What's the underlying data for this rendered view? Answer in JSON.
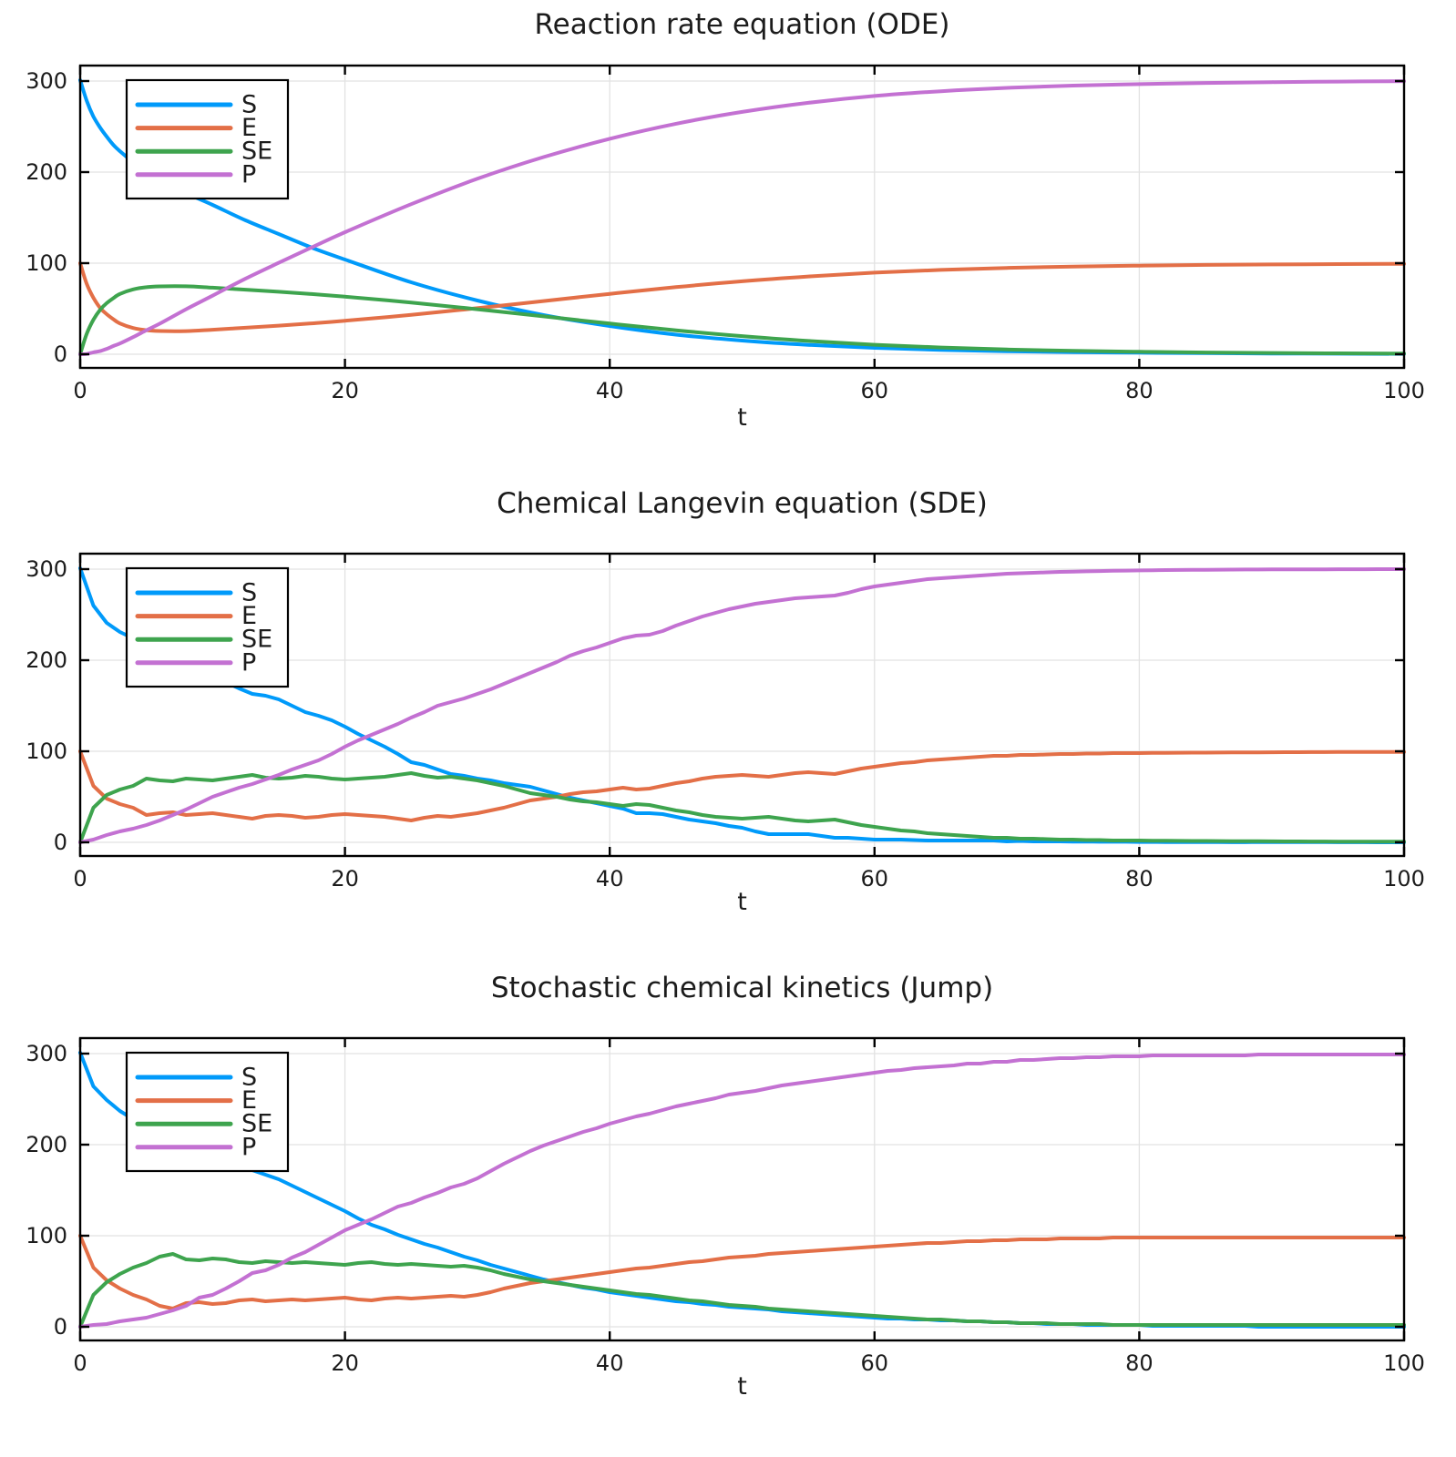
{
  "figure": {
    "background": "#FFFFFF"
  },
  "style": {
    "frame_color": "#000000",
    "grid_color": "#E2E2E2",
    "text_color": "#1C1C1C",
    "series_colors": {
      "S": "#009AFA",
      "E": "#E36F47",
      "SE": "#3EA44E",
      "P": "#C371D2"
    }
  },
  "chart_data": [
    {
      "type": "line",
      "title": "Reaction rate equation (ODE)",
      "xlabel": "t",
      "xlim": [
        0,
        100
      ],
      "ylim": [
        0,
        300
      ],
      "xticks": [
        0,
        20,
        40,
        60,
        80,
        100
      ],
      "yticks": [
        0,
        100,
        200,
        300
      ],
      "grid": true,
      "legend_position": "top-left",
      "legend_entries": [
        "S",
        "E",
        "SE",
        "P"
      ],
      "smooth": true,
      "x": [
        0,
        0.5,
        1,
        1.5,
        2,
        2.5,
        3,
        4,
        5,
        6,
        8,
        10,
        12.5,
        15,
        17.5,
        20,
        25,
        30,
        35,
        40,
        45,
        50,
        55,
        60,
        65,
        70,
        75,
        80,
        85,
        90,
        95,
        100
      ],
      "series": [
        {
          "name": "S",
          "values": [
            301,
            278,
            261,
            249,
            239,
            230,
            223,
            211,
            201,
            193,
            177,
            164,
            147,
            132,
            117,
            104,
            79,
            59,
            43,
            31,
            21.5,
            15,
            10.3,
            7,
            4.8,
            3.3,
            2.3,
            1.7,
            1.2,
            0.8,
            0.6,
            0.4
          ]
        },
        {
          "name": "E",
          "values": [
            100,
            77,
            62,
            51,
            44,
            38.5,
            33.8,
            28.8,
            26.4,
            25.5,
            25.4,
            26.9,
            29.1,
            31.4,
            33.9,
            36.8,
            43.2,
            50.6,
            58.4,
            66.3,
            73.7,
            80.1,
            85.4,
            89.6,
            92.6,
            94.8,
            96.3,
            97.3,
            98.1,
            98.6,
            99,
            99.3
          ]
        },
        {
          "name": "SE",
          "values": [
            0,
            22.7,
            37.9,
            48.6,
            56.1,
            61.5,
            66.2,
            71.2,
            73.6,
            74.5,
            74.6,
            73.1,
            70.9,
            68.6,
            66.1,
            63.2,
            56.8,
            49.4,
            41.6,
            33.7,
            26.3,
            19.9,
            14.6,
            10.4,
            7.4,
            5.2,
            3.7,
            2.7,
            1.9,
            1.4,
            1,
            0.7
          ]
        },
        {
          "name": "P",
          "values": [
            0,
            0.3,
            2.1,
            3.4,
            5.9,
            9,
            11.8,
            18.8,
            26.4,
            33.5,
            49.4,
            64.3,
            83.1,
            100.4,
            117.4,
            134,
            164.8,
            192.7,
            216.5,
            236.6,
            253.1,
            266.1,
            276.1,
            283.6,
            288.8,
            292.5,
            295,
            296.6,
            297.9,
            298.8,
            299.4,
            299.9
          ]
        }
      ]
    },
    {
      "type": "line",
      "title": "Chemical Langevin equation (SDE)",
      "xlabel": "t",
      "xlim": [
        0,
        100
      ],
      "ylim": [
        0,
        300
      ],
      "xticks": [
        0,
        20,
        40,
        60,
        80,
        100
      ],
      "yticks": [
        0,
        100,
        200,
        300
      ],
      "grid": true,
      "legend_position": "top-left",
      "legend_entries": [
        "S",
        "E",
        "SE",
        "P"
      ],
      "smooth": false,
      "x_start": 0,
      "x_step": 1,
      "series": [
        {
          "name": "S",
          "values": [
            301,
            260,
            241,
            231,
            224,
            212,
            209,
            204,
            195,
            189,
            183,
            176,
            169,
            163,
            161,
            157,
            150,
            143,
            139,
            134,
            127,
            119,
            112,
            105,
            97,
            88,
            85,
            80,
            75,
            73,
            70,
            68,
            65,
            63,
            61,
            57,
            53,
            49,
            46,
            43,
            40,
            37,
            32,
            32,
            31,
            28,
            25,
            23,
            21,
            18,
            16,
            12,
            9,
            9,
            9,
            9,
            7,
            5,
            5,
            4,
            3,
            3,
            3,
            2.5,
            2,
            2,
            2,
            2,
            2,
            2,
            1,
            1.5,
            1,
            1,
            1,
            0.7,
            0.9,
            0.6,
            0.8,
            0.6,
            0.4,
            0.4,
            0.3,
            0.3,
            0.3,
            0.2,
            0.2,
            0.1,
            0.1,
            0.4,
            0.3,
            0.3,
            0.2,
            0.2,
            0.3,
            0.1,
            0.1,
            0.1,
            0,
            0,
            0
          ]
        },
        {
          "name": "E",
          "values": [
            100,
            62,
            48,
            42,
            38,
            30,
            32,
            33,
            30,
            31,
            32,
            30,
            28,
            26,
            29,
            30,
            29,
            27,
            28,
            30,
            31,
            30,
            29,
            28,
            26,
            24,
            27,
            29,
            28,
            30,
            32,
            35,
            38,
            42,
            46,
            48,
            50,
            53,
            55,
            56,
            58,
            60,
            58,
            59,
            62,
            65,
            67,
            70,
            72,
            73,
            74,
            73,
            72,
            74,
            76,
            77,
            76,
            75,
            78,
            81,
            83,
            85,
            87,
            88,
            90,
            91,
            92,
            93,
            94,
            95,
            95,
            96,
            96,
            96.5,
            97,
            97,
            97.5,
            97.5,
            98,
            98,
            98,
            98.2,
            98.3,
            98.4,
            98.5,
            98.5,
            98.6,
            98.7,
            98.8,
            98.8,
            98.9,
            99,
            99,
            99.1,
            99.1,
            99.2,
            99.2,
            99.2,
            99.3,
            99.3,
            99.3
          ]
        },
        {
          "name": "SE",
          "values": [
            0,
            38,
            52,
            58,
            62,
            70,
            68,
            67,
            70,
            69,
            68,
            70,
            72,
            74,
            71,
            70,
            71,
            73,
            72,
            70,
            69,
            70,
            71,
            72,
            74,
            76,
            73,
            71,
            72,
            70,
            68,
            65,
            62,
            58,
            54,
            52,
            50,
            47,
            45,
            44,
            42,
            40,
            42,
            41,
            38,
            35,
            33,
            30,
            28,
            27,
            26,
            27,
            28,
            26,
            24,
            23,
            24,
            25,
            22,
            19,
            17,
            15,
            13,
            12,
            10,
            9,
            8,
            7,
            6,
            5,
            5,
            4,
            4,
            3.5,
            3,
            3,
            2.5,
            2.5,
            2,
            2,
            2,
            1.8,
            1.7,
            1.6,
            1.5,
            1.5,
            1.4,
            1.3,
            1.2,
            1.2,
            1.1,
            1,
            1,
            0.9,
            0.9,
            0.8,
            0.8,
            0.8,
            0.7,
            0.7,
            0.7
          ]
        },
        {
          "name": "P",
          "values": [
            0,
            3,
            8,
            12,
            15,
            19,
            24,
            30,
            36,
            43,
            50,
            55,
            60,
            64,
            69,
            74,
            80,
            85,
            90,
            97,
            105,
            112,
            118,
            124,
            130,
            137,
            143,
            150,
            154,
            158,
            163,
            168,
            174,
            180,
            186,
            192,
            198,
            205,
            210,
            214,
            219,
            224,
            227,
            228,
            232,
            238,
            243,
            248,
            252,
            256,
            259,
            262,
            264,
            266,
            268,
            269,
            270,
            271,
            274,
            278,
            281,
            283,
            285,
            287,
            289,
            290,
            291,
            292,
            293,
            294,
            295,
            295.5,
            296,
            296.5,
            297,
            297.3,
            297.6,
            297.9,
            298.2,
            298.4,
            298.6,
            298.8,
            299,
            299.1,
            299.2,
            299.3,
            299.4,
            299.5,
            299.6,
            299.6,
            299.7,
            299.7,
            299.8,
            299.8,
            299.8,
            299.9,
            299.9,
            299.9,
            300,
            300,
            300
          ]
        }
      ]
    },
    {
      "type": "line",
      "title": "Stochastic chemical kinetics (Jump)",
      "xlabel": "t",
      "xlim": [
        0,
        100
      ],
      "ylim": [
        0,
        300
      ],
      "xticks": [
        0,
        20,
        40,
        60,
        80,
        100
      ],
      "yticks": [
        0,
        100,
        200,
        300
      ],
      "grid": true,
      "legend_position": "top-left",
      "legend_entries": [
        "S",
        "E",
        "SE",
        "P"
      ],
      "smooth": false,
      "x_start": 0,
      "x_step": 1,
      "series": [
        {
          "name": "S",
          "values": [
            301,
            264,
            249,
            237,
            228,
            221,
            210,
            203,
            204,
            196,
            191,
            185,
            180,
            172,
            167,
            162,
            155,
            148,
            141,
            134,
            127,
            119,
            112,
            107,
            101,
            96,
            91,
            87,
            82,
            77,
            73,
            68,
            64,
            60,
            56,
            52,
            49,
            46,
            43,
            41,
            38,
            36,
            34,
            32,
            30,
            28,
            27,
            25,
            24,
            22,
            21,
            20,
            19,
            17,
            16,
            15,
            14,
            13,
            12,
            11,
            10,
            9,
            9,
            8,
            8,
            7,
            7,
            6,
            6,
            5,
            5,
            4,
            4,
            3,
            3,
            3,
            2,
            2,
            2,
            2,
            2,
            1,
            1,
            1,
            1,
            1,
            1,
            1,
            1,
            0,
            0,
            0,
            0,
            0,
            0,
            0,
            0,
            0,
            0,
            0,
            0
          ]
        },
        {
          "name": "E",
          "values": [
            100,
            65,
            51,
            42,
            35,
            30,
            23,
            20,
            26,
            27,
            25,
            26,
            29,
            30,
            28,
            29,
            30,
            29,
            30,
            31,
            32,
            30,
            29,
            31,
            32,
            31,
            32,
            33,
            34,
            33,
            35,
            38,
            42,
            45,
            48,
            50,
            52,
            54,
            56,
            58,
            60,
            62,
            64,
            65,
            67,
            69,
            71,
            72,
            74,
            76,
            77,
            78,
            80,
            81,
            82,
            83,
            84,
            85,
            86,
            87,
            88,
            89,
            90,
            91,
            92,
            92,
            93,
            94,
            94,
            95,
            95,
            96,
            96,
            96,
            97,
            97,
            97,
            97,
            98,
            98,
            98,
            98,
            98,
            98,
            98,
            98,
            98,
            98,
            98,
            98,
            98,
            98,
            98,
            98,
            98,
            98,
            98,
            98,
            98,
            98,
            98
          ]
        },
        {
          "name": "SE",
          "values": [
            0,
            35,
            49,
            58,
            65,
            70,
            77,
            80,
            74,
            73,
            75,
            74,
            71,
            70,
            72,
            71,
            70,
            71,
            70,
            69,
            68,
            70,
            71,
            69,
            68,
            69,
            68,
            67,
            66,
            67,
            65,
            62,
            58,
            55,
            52,
            50,
            48,
            46,
            44,
            42,
            40,
            38,
            36,
            35,
            33,
            31,
            29,
            28,
            26,
            24,
            23,
            22,
            20,
            19,
            18,
            17,
            16,
            15,
            14,
            13,
            12,
            11,
            10,
            9,
            8,
            8,
            7,
            6,
            6,
            5,
            5,
            4,
            4,
            4,
            3,
            3,
            3,
            3,
            2,
            2,
            2,
            2,
            2,
            2,
            2,
            2,
            2,
            2,
            2,
            2,
            2,
            2,
            2,
            2,
            2,
            2,
            2,
            2,
            2,
            2,
            2
          ]
        },
        {
          "name": "P",
          "values": [
            0,
            2,
            3,
            6,
            8,
            10,
            14,
            18,
            23,
            32,
            35,
            42,
            50,
            59,
            62,
            68,
            76,
            82,
            90,
            98,
            106,
            112,
            118,
            125,
            132,
            136,
            142,
            147,
            153,
            157,
            163,
            171,
            179,
            186,
            193,
            199,
            204,
            209,
            214,
            218,
            223,
            227,
            231,
            234,
            238,
            242,
            245,
            248,
            251,
            255,
            257,
            259,
            262,
            265,
            267,
            269,
            271,
            273,
            275,
            277,
            279,
            281,
            282,
            284,
            285,
            286,
            287,
            289,
            289,
            291,
            291,
            293,
            293,
            294,
            295,
            295,
            296,
            296,
            297,
            297,
            297,
            298,
            298,
            298,
            298,
            298,
            298,
            298,
            298,
            299,
            299,
            299,
            299,
            299,
            299,
            299,
            299,
            299,
            299,
            299,
            299
          ]
        }
      ]
    }
  ]
}
